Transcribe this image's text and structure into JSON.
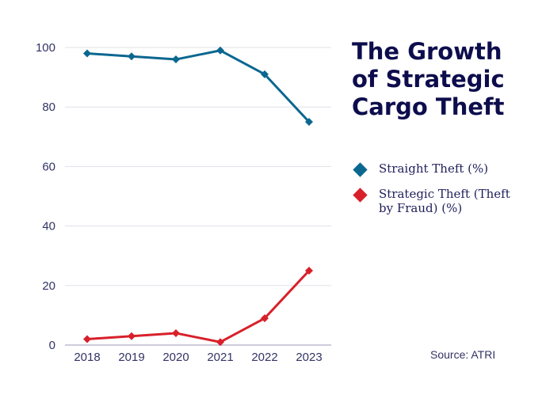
{
  "chart_data": {
    "type": "line",
    "title": "The Growth of Strategic Cargo Theft",
    "categories": [
      "2018",
      "2019",
      "2020",
      "2021",
      "2022",
      "2023"
    ],
    "yticks": [
      0,
      20,
      40,
      60,
      80,
      100
    ],
    "ylim": [
      0,
      100
    ],
    "grid": true,
    "legend_placement": "right",
    "series": [
      {
        "name": "Straight Theft (%)",
        "color": "#0b6790",
        "values": [
          98,
          97,
          96,
          99,
          91,
          75
        ]
      },
      {
        "name": "Strategic Theft (Theft by Fraud) (%)",
        "color": "#d8202b",
        "values": [
          2,
          3,
          4,
          1,
          9,
          25
        ]
      }
    ],
    "source": "Source: ATRI"
  }
}
